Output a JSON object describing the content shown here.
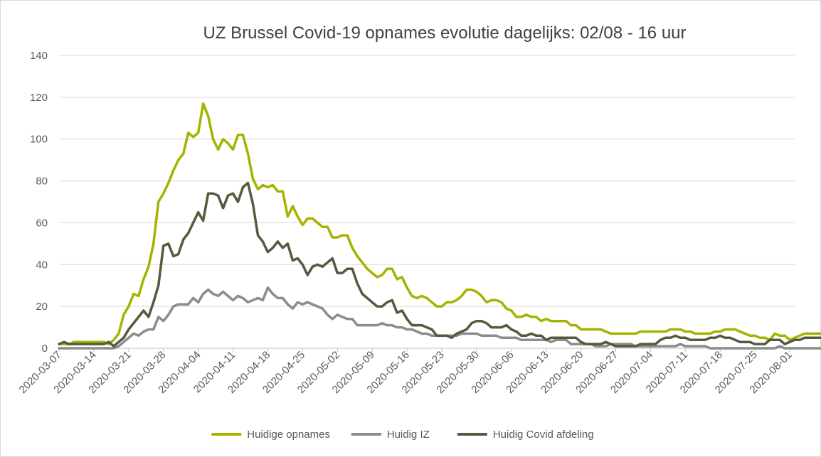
{
  "chart_data": {
    "type": "line",
    "title": "UZ Brussel Covid-19 opnames evolutie dagelijks: 02/08 - 16 uur",
    "xlabel": "",
    "ylabel": "",
    "ylim": [
      0,
      140
    ],
    "yticks": [
      0,
      20,
      40,
      60,
      80,
      100,
      120,
      140
    ],
    "grid": "horizontal",
    "legend_position": "bottom",
    "x_tick_labels": [
      "2020-03-07",
      "2020-03-14",
      "2020-03-21",
      "2020-03-28",
      "2020-04-04",
      "2020-04-11",
      "2020-04-18",
      "2020-04-25",
      "2020-05-02",
      "2020-05-09",
      "2020-05-16",
      "2020-05-23",
      "2020-05-30",
      "2020-06-06",
      "2020-06-13",
      "2020-06-20",
      "2020-06-27",
      "2020-07-04",
      "2020-07-11",
      "2020-07-18",
      "2020-07-25",
      "2020-08-01"
    ],
    "x_start": "2020-03-07",
    "x_end": "2020-08-02",
    "series": [
      {
        "name": "Huidige opnames",
        "color": "#a5b300",
        "values": [
          2,
          2,
          2,
          3,
          3,
          3,
          3,
          3,
          3,
          3,
          2,
          4,
          7,
          16,
          20,
          26,
          25,
          33,
          39,
          50,
          70,
          74,
          79,
          85,
          90,
          93,
          103,
          101,
          103,
          117,
          111,
          100,
          95,
          100,
          98,
          95,
          102,
          102,
          93,
          81,
          76,
          78,
          77,
          78,
          75,
          75,
          63,
          68,
          63,
          59,
          62,
          62,
          60,
          58,
          58,
          53,
          53,
          54,
          54,
          48,
          44,
          41,
          38,
          36,
          34,
          35,
          38,
          38,
          33,
          34,
          29,
          25,
          24,
          25,
          24,
          22,
          20,
          20,
          22,
          22,
          23,
          25,
          28,
          28,
          27,
          25,
          22,
          23,
          23,
          22,
          19,
          18,
          15,
          15,
          16,
          15,
          15,
          13,
          14,
          13,
          13,
          13,
          13,
          11,
          11,
          9,
          9,
          9,
          9,
          9,
          8,
          7,
          7,
          7,
          7,
          7,
          7,
          8,
          8,
          8,
          8,
          8,
          8,
          9,
          9,
          9,
          8,
          8,
          7,
          7,
          7,
          7,
          8,
          8,
          9,
          9,
          9,
          8,
          7,
          6,
          6,
          5,
          5,
          4,
          7,
          6,
          6,
          4,
          5,
          6,
          7,
          7,
          7,
          7,
          7
        ]
      },
      {
        "name": "Huidig IZ",
        "color": "#8c8c8c",
        "values": [
          0,
          0,
          0,
          0,
          0,
          0,
          0,
          0,
          0,
          0,
          0,
          0,
          1,
          3,
          5,
          7,
          6,
          8,
          9,
          9,
          15,
          13,
          16,
          20,
          21,
          21,
          21,
          24,
          22,
          26,
          28,
          26,
          25,
          27,
          25,
          23,
          25,
          24,
          22,
          23,
          24,
          23,
          29,
          26,
          24,
          24,
          21,
          19,
          22,
          21,
          22,
          21,
          20,
          19,
          16,
          14,
          16,
          15,
          14,
          14,
          11,
          11,
          11,
          11,
          11,
          12,
          11,
          11,
          10,
          10,
          9,
          9,
          8,
          7,
          7,
          6,
          6,
          6,
          6,
          6,
          6,
          7,
          7,
          7,
          7,
          6,
          6,
          6,
          6,
          5,
          5,
          5,
          5,
          4,
          4,
          4,
          4,
          4,
          4,
          3,
          4,
          4,
          4,
          2,
          2,
          2,
          2,
          2,
          1,
          1,
          1,
          2,
          2,
          2,
          2,
          2,
          1,
          1,
          1,
          1,
          1,
          1,
          1,
          1,
          1,
          2,
          1,
          1,
          1,
          1,
          1,
          0,
          0,
          0,
          0,
          0,
          0,
          0,
          0,
          0,
          0,
          0,
          0,
          0,
          0,
          1,
          0,
          0,
          0,
          0,
          0,
          0,
          0,
          0,
          0
        ]
      },
      {
        "name": "Huidig Covid afdeling",
        "color": "#555a3f",
        "values": [
          2,
          3,
          2,
          2,
          2,
          2,
          2,
          2,
          2,
          2,
          3,
          1,
          3,
          5,
          9,
          12,
          15,
          18,
          15,
          22,
          30,
          49,
          50,
          44,
          45,
          52,
          55,
          60,
          65,
          61,
          74,
          74,
          73,
          67,
          73,
          74,
          70,
          77,
          79,
          69,
          54,
          51,
          46,
          48,
          51,
          48,
          50,
          42,
          43,
          40,
          35,
          39,
          40,
          39,
          41,
          43,
          36,
          36,
          38,
          38,
          31,
          26,
          24,
          22,
          20,
          20,
          22,
          23,
          17,
          18,
          14,
          11,
          11,
          11,
          10,
          9,
          6,
          6,
          6,
          5,
          7,
          8,
          9,
          12,
          13,
          13,
          12,
          10,
          10,
          10,
          11,
          9,
          8,
          6,
          6,
          7,
          6,
          6,
          4,
          5,
          5,
          5,
          5,
          5,
          5,
          3,
          2,
          2,
          2,
          2,
          3,
          2,
          1,
          1,
          1,
          1,
          1,
          2,
          2,
          2,
          2,
          4,
          5,
          5,
          6,
          5,
          5,
          4,
          4,
          4,
          4,
          5,
          5,
          6,
          5,
          5,
          4,
          3,
          3,
          3,
          2,
          2,
          2,
          4,
          4,
          4,
          2,
          3,
          4,
          4,
          5,
          5,
          5,
          5,
          5
        ]
      }
    ]
  }
}
